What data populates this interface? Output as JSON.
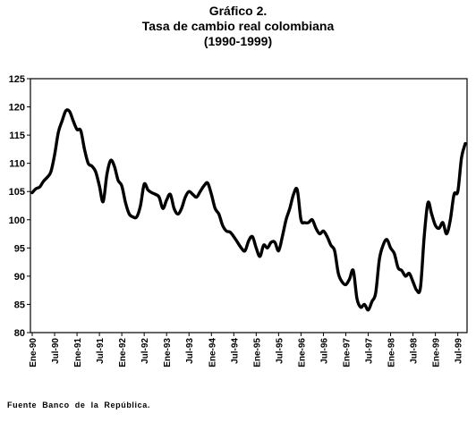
{
  "header": {
    "line1": "Gráfico 2.",
    "line2": "Tasa de cambio real colombiana",
    "line3": "(1990-1999)"
  },
  "source": "Fuente Banco de la República.",
  "chart_data": {
    "type": "line",
    "title": "Gráfico 2. Tasa de cambio real colombiana (1990-1999)",
    "xlabel": "",
    "ylabel": "",
    "ylim": [
      80,
      125
    ],
    "yticks": [
      80,
      85,
      90,
      95,
      100,
      105,
      110,
      115,
      120,
      125
    ],
    "xlim": [
      "1990-01",
      "1999-09"
    ],
    "xticks": [
      "Ene-90",
      "Jul-90",
      "Ene-91",
      "Jul-91",
      "Ene-92",
      "Jul-92",
      "Ene-93",
      "Jul-93",
      "Ene-94",
      "Jul-94",
      "Ene-95",
      "Jul-95",
      "Ene-96",
      "Jul-96",
      "Ene-97",
      "Jul-97",
      "Ene-98",
      "Jul-98",
      "Ene-99",
      "Jul-99"
    ],
    "grid": false,
    "legend": "none",
    "line_color": "#000000",
    "series": [
      {
        "x": [
          "1990-01",
          "1990-02",
          "1990-03",
          "1990-04",
          "1990-05",
          "1990-06",
          "1990-07",
          "1990-08",
          "1990-09",
          "1990-10",
          "1990-11",
          "1990-12",
          "1991-01",
          "1991-02",
          "1991-03",
          "1991-04",
          "1991-05",
          "1991-06",
          "1991-07",
          "1991-08",
          "1991-09",
          "1991-10",
          "1991-11",
          "1991-12",
          "1992-01",
          "1992-02",
          "1992-03",
          "1992-04",
          "1992-05",
          "1992-06",
          "1992-07",
          "1992-08",
          "1992-09",
          "1992-10",
          "1992-11",
          "1992-12",
          "1993-01",
          "1993-02",
          "1993-03",
          "1993-04",
          "1993-05",
          "1993-06",
          "1993-07",
          "1993-08",
          "1993-09",
          "1993-10",
          "1993-11",
          "1993-12",
          "1994-01",
          "1994-02",
          "1994-03",
          "1994-04",
          "1994-05",
          "1994-06",
          "1994-07",
          "1994-08",
          "1994-09",
          "1994-10",
          "1994-11",
          "1994-12",
          "1995-01",
          "1995-02",
          "1995-03",
          "1995-04",
          "1995-05",
          "1995-06",
          "1995-07",
          "1995-08",
          "1995-09",
          "1995-10",
          "1995-11",
          "1995-12",
          "1996-01",
          "1996-02",
          "1996-03",
          "1996-04",
          "1996-05",
          "1996-06",
          "1996-07",
          "1996-08",
          "1996-09",
          "1996-10",
          "1996-11",
          "1996-12",
          "1997-01",
          "1997-02",
          "1997-03",
          "1997-04",
          "1997-05",
          "1997-06",
          "1997-07",
          "1997-08",
          "1997-09",
          "1997-10",
          "1997-11",
          "1997-12",
          "1998-01",
          "1998-02",
          "1998-03",
          "1998-04",
          "1998-05",
          "1998-06",
          "1998-07",
          "1998-08",
          "1998-09",
          "1998-10",
          "1998-11",
          "1998-12",
          "1999-01",
          "1999-02",
          "1999-03",
          "1999-04",
          "1999-05",
          "1999-06",
          "1999-07",
          "1999-08",
          "1999-09"
        ],
        "y": [
          104.8,
          105.5,
          105.8,
          106.8,
          107.5,
          108.5,
          111.5,
          115.5,
          117.5,
          119.3,
          119.2,
          117.5,
          116.0,
          115.8,
          112.5,
          110.0,
          109.5,
          108.5,
          106.0,
          103.2,
          108.0,
          110.5,
          109.5,
          107.0,
          106.0,
          103.0,
          101.0,
          100.5,
          100.5,
          102.5,
          106.3,
          105.3,
          104.8,
          104.5,
          104.0,
          102.0,
          103.5,
          104.5,
          102.0,
          101.0,
          102.0,
          104.0,
          105.0,
          104.5,
          104.0,
          105.0,
          106.0,
          106.5,
          104.5,
          102.0,
          101.0,
          99.0,
          98.0,
          97.8,
          97.0,
          96.0,
          95.0,
          94.5,
          96.3,
          97.0,
          95.0,
          93.5,
          95.5,
          95.0,
          96.0,
          96.0,
          94.5,
          97.0,
          100.0,
          102.0,
          104.5,
          105.3,
          100.0,
          99.5,
          99.5,
          100.0,
          98.5,
          97.5,
          98.0,
          97.0,
          95.5,
          94.5,
          90.5,
          89.0,
          88.5,
          89.5,
          91.0,
          86.0,
          84.5,
          85.0,
          84.0,
          85.5,
          87.0,
          93.0,
          95.5,
          96.5,
          95.0,
          94.0,
          91.5,
          91.0,
          90.0,
          90.5,
          89.0,
          87.5,
          88.0,
          97.0,
          103.0,
          101.0,
          99.0,
          98.5,
          99.5,
          97.5,
          100.0,
          104.5,
          105.0,
          111.0,
          113.5
        ]
      }
    ]
  }
}
